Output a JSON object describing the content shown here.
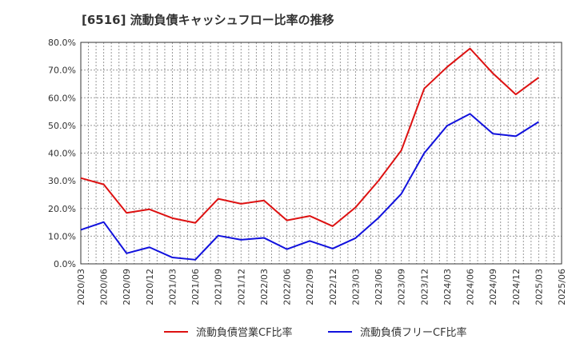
{
  "chart_data": {
    "type": "line",
    "title": "[6516]  流動負債キャッシュフロー比率の推移",
    "xlabel": "",
    "ylabel": "",
    "ylim": [
      0,
      80
    ],
    "yticks": [
      "0.0%",
      "10.0%",
      "20.0%",
      "30.0%",
      "40.0%",
      "50.0%",
      "60.0%",
      "70.0%",
      "80.0%"
    ],
    "categories": [
      "2020/03",
      "2020/06",
      "2020/09",
      "2020/12",
      "2021/03",
      "2021/06",
      "2021/09",
      "2021/12",
      "2022/03",
      "2022/06",
      "2022/09",
      "2022/12",
      "2023/03",
      "2023/06",
      "2023/09",
      "2023/12",
      "2024/03",
      "2024/06",
      "2024/09",
      "2024/12",
      "2025/03",
      "2025/06"
    ],
    "grid": true,
    "legend_position": "bottom",
    "series": [
      {
        "name": "流動負債営業CF比率",
        "color": "#dd1111",
        "values": [
          31.0,
          28.7,
          18.4,
          19.7,
          16.5,
          14.8,
          23.5,
          21.7,
          22.9,
          15.7,
          17.3,
          13.6,
          20.4,
          30.0,
          41.0,
          63.3,
          71.1,
          77.8,
          68.8,
          61.2,
          67.3,
          null
        ]
      },
      {
        "name": "流動負債フリーCF比率",
        "color": "#1111dd",
        "values": [
          12.3,
          15.1,
          3.8,
          6.0,
          2.3,
          1.5,
          10.2,
          8.7,
          9.4,
          5.3,
          8.3,
          5.5,
          9.3,
          16.6,
          25.3,
          40.0,
          49.9,
          54.2,
          47.0,
          46.1,
          51.3,
          null
        ]
      }
    ]
  }
}
